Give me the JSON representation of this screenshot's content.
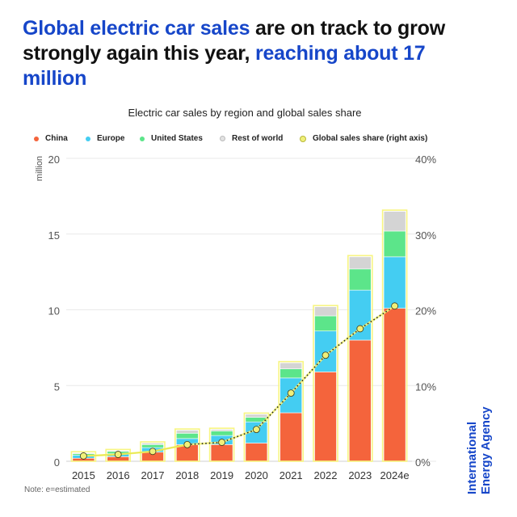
{
  "headline": {
    "part1": "Global electric car sales",
    "part2": " are on track to grow strongly again this year, ",
    "part3": "reaching about 17 million"
  },
  "chart_title": "Electric car sales by region and global sales share",
  "note": "Note: e=estimated",
  "brand": {
    "line1": "International",
    "line2": "Energy Agency"
  },
  "colors": {
    "accent": "#1646c9",
    "China": "#f4643c",
    "Europe": "#44cdf2",
    "United States": "#5ce58a",
    "Rest of world": "#d4d4d4",
    "share_marker": "#f0f07a",
    "bar_outline": "#f7f582"
  },
  "chart_data": {
    "type": "bar",
    "stacked": true,
    "title": "Electric car sales by region and global sales share",
    "ylabel": "million",
    "ylim": [
      0,
      20
    ],
    "yticks": [
      "0",
      "5",
      "10",
      "15",
      "20"
    ],
    "y2label": "Global sales share (right axis)",
    "y2lim": [
      0,
      40
    ],
    "y2ticks": [
      "0%",
      "10%",
      "20%",
      "30%",
      "40%"
    ],
    "categories": [
      "2015",
      "2016",
      "2017",
      "2018",
      "2019",
      "2020",
      "2021",
      "2022",
      "2023",
      "2024e"
    ],
    "legend": [
      "China",
      "Europe",
      "United States",
      "Rest of world",
      "Global sales share (right axis)"
    ],
    "series": [
      {
        "name": "China",
        "values": [
          0.2,
          0.3,
          0.6,
          1.1,
          1.1,
          1.2,
          3.2,
          5.9,
          8.0,
          10.1
        ]
      },
      {
        "name": "Europe",
        "values": [
          0.2,
          0.2,
          0.3,
          0.4,
          0.6,
          1.4,
          2.3,
          2.7,
          3.3,
          3.4
        ]
      },
      {
        "name": "United States",
        "values": [
          0.1,
          0.15,
          0.2,
          0.35,
          0.3,
          0.3,
          0.6,
          1.0,
          1.4,
          1.7
        ]
      },
      {
        "name": "Rest of world",
        "values": [
          0.05,
          0.05,
          0.1,
          0.2,
          0.1,
          0.2,
          0.4,
          0.6,
          0.8,
          1.3
        ]
      },
      {
        "name": "Global sales share (right axis)",
        "axis": "right",
        "values": [
          0.7,
          0.9,
          1.3,
          2.2,
          2.5,
          4.2,
          9.0,
          14.0,
          17.5,
          20.5
        ]
      }
    ]
  }
}
